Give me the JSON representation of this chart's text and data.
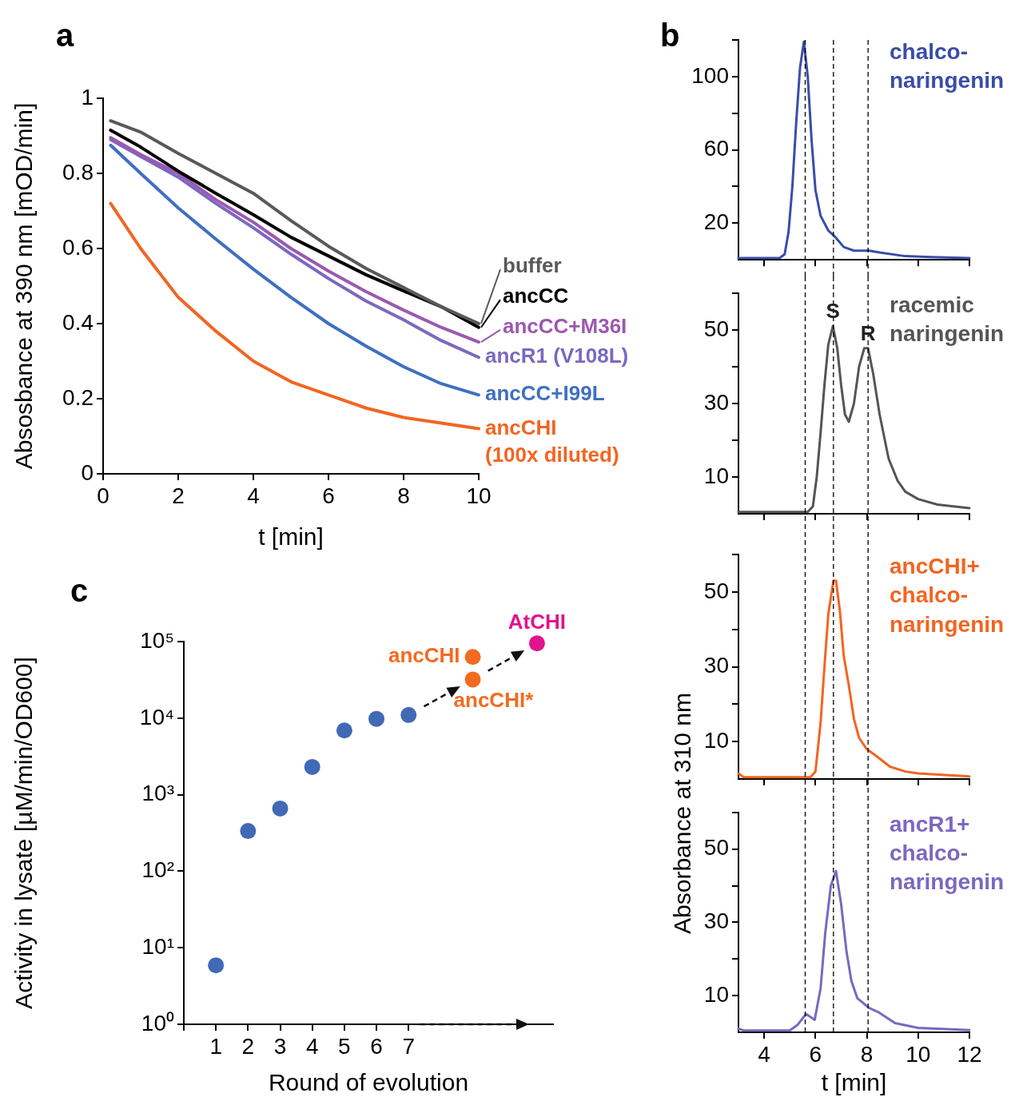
{
  "chart_data": [
    {
      "type": "line",
      "title": "a",
      "xlabel": "t [min]",
      "ylabel": "Absosbance at 390 nm [mOD/min]",
      "xlim": [
        0,
        10
      ],
      "xticks": [
        0,
        2,
        4,
        6,
        8,
        10
      ],
      "ylim": [
        0,
        1
      ],
      "yticks": [
        0,
        0.2,
        0.4,
        0.6,
        0.8,
        1
      ],
      "marker": "none",
      "x": [
        0.2,
        1,
        2,
        3,
        4,
        5,
        6,
        7,
        8,
        9,
        10
      ],
      "series": [
        {
          "name": "buffer",
          "color": "#595959",
          "values": [
            0.94,
            0.91,
            0.853,
            0.8,
            0.747,
            0.674,
            0.606,
            0.547,
            0.496,
            0.445,
            0.4
          ]
        },
        {
          "name": "ancCC",
          "color": "#000000",
          "values": [
            0.915,
            0.87,
            0.806,
            0.747,
            0.69,
            0.63,
            0.58,
            0.53,
            0.487,
            0.445,
            0.39
          ]
        },
        {
          "name": "ancCC+M36I",
          "color": "#9b59b0",
          "values": [
            0.895,
            0.85,
            0.8,
            0.73,
            0.67,
            0.6,
            0.54,
            0.485,
            0.436,
            0.39,
            0.351
          ]
        },
        {
          "name": "ancR1 (V108L)",
          "color": "#7b68c0",
          "values": [
            0.89,
            0.845,
            0.79,
            0.72,
            0.655,
            0.585,
            0.52,
            0.46,
            0.41,
            0.355,
            0.31
          ]
        },
        {
          "name": "ancCC+I99L",
          "color": "#3f6fc0",
          "values": [
            0.875,
            0.8,
            0.708,
            0.625,
            0.545,
            0.47,
            0.4,
            0.34,
            0.285,
            0.24,
            0.21
          ]
        },
        {
          "name": "ancCHI (100x diluted)",
          "color": "#f26522",
          "values": [
            0.72,
            0.6,
            0.47,
            0.38,
            0.3,
            0.245,
            0.21,
            0.175,
            0.15,
            0.135,
            0.12
          ]
        }
      ]
    },
    {
      "type": "line",
      "title": "b",
      "xlim": [
        3,
        12
      ],
      "xticks": [
        4,
        6,
        8,
        10,
        12
      ],
      "ylim": [
        0,
        120
      ],
      "yticks": [
        20,
        {
          "value": 40,
          "label": null
        },
        60,
        {
          "value": 80,
          "label": null
        },
        100,
        {
          "value": 120,
          "label": null
        }
      ],
      "tick_labels": "y",
      "marker": "none",
      "ref_lines": [
        {
          "axis": "x",
          "value": 5.6,
          "line_style": "dashed"
        },
        {
          "axis": "x",
          "value": 6.7,
          "line_style": "dashed"
        },
        {
          "axis": "x",
          "value": 8.05,
          "line_style": "dashed"
        }
      ],
      "series": [
        {
          "name": "chalco-naringenin",
          "color": "#3a4da8",
          "x": [
            3,
            4.6,
            4.8,
            4.95,
            5.1,
            5.25,
            5.4,
            5.55,
            5.7,
            5.85,
            6.0,
            6.2,
            6.5,
            6.8,
            7.1,
            7.5,
            8.1,
            8.5,
            9.5,
            10.5,
            12
          ],
          "values": [
            1,
            1,
            3,
            15,
            40,
            75,
            105,
            119,
            100,
            65,
            38,
            24,
            16,
            12,
            7,
            5,
            5,
            4,
            2,
            1.5,
            1
          ]
        }
      ]
    },
    {
      "type": "line",
      "xlim": [
        3,
        12
      ],
      "xticks": [
        4,
        6,
        8,
        10,
        12
      ],
      "ylim": [
        0,
        60
      ],
      "yticks": [
        10,
        {
          "value": 20,
          "label": null
        },
        30,
        {
          "value": 40,
          "label": null
        },
        50,
        {
          "value": 60,
          "label": null
        }
      ],
      "tick_labels": "y",
      "marker": "none",
      "annotations": [
        {
          "text": "S",
          "x": 6.68,
          "y": 51
        },
        {
          "text": "R",
          "x": 8.05,
          "y": 45
        }
      ],
      "ref_lines": [
        {
          "axis": "x",
          "value": 5.6,
          "line_style": "dashed"
        },
        {
          "axis": "x",
          "value": 6.7,
          "line_style": "dashed"
        },
        {
          "axis": "x",
          "value": 8.05,
          "line_style": "dashed"
        }
      ],
      "series": [
        {
          "name": "racemic naringenin",
          "color": "#555555",
          "x": [
            3,
            5.7,
            5.9,
            6.05,
            6.2,
            6.35,
            6.5,
            6.68,
            6.85,
            7.0,
            7.15,
            7.3,
            7.5,
            7.7,
            7.9,
            8.05,
            8.25,
            8.5,
            8.85,
            9.2,
            9.5,
            10,
            10.75,
            12
          ],
          "values": [
            0.5,
            0.5,
            2,
            10,
            22,
            35,
            46,
            51,
            45,
            35,
            27,
            25,
            30,
            40,
            45,
            45,
            38,
            27,
            15,
            9,
            6,
            4,
            2.5,
            1.5
          ]
        }
      ]
    },
    {
      "type": "line",
      "xlim": [
        3,
        12
      ],
      "xticks": [
        4,
        6,
        8,
        10,
        12
      ],
      "ylim": [
        0,
        60
      ],
      "yticks": [
        10,
        {
          "value": 20,
          "label": null
        },
        30,
        {
          "value": 40,
          "label": null
        },
        50,
        {
          "value": 60,
          "label": null
        }
      ],
      "tick_labels": "y",
      "marker": "none",
      "ref_lines": [
        {
          "axis": "x",
          "value": 5.6,
          "line_style": "dashed"
        },
        {
          "axis": "x",
          "value": 6.7,
          "line_style": "dashed"
        },
        {
          "axis": "x",
          "value": 8.05,
          "line_style": "dashed"
        }
      ],
      "series": [
        {
          "name": "ancCHI+chalco-naringenin",
          "color": "#f26522",
          "x": [
            3,
            3.2,
            5.8,
            6.0,
            6.2,
            6.35,
            6.5,
            6.7,
            6.8,
            6.95,
            7.1,
            7.3,
            7.5,
            7.7,
            8.0,
            8.3,
            8.9,
            9.5,
            10,
            12
          ],
          "values": [
            1.5,
            0.5,
            0.5,
            2,
            15,
            30,
            44,
            53,
            53,
            45,
            33,
            25,
            16,
            11,
            8,
            6.5,
            3.3,
            2,
            1.5,
            0.7
          ]
        }
      ]
    },
    {
      "type": "line",
      "xlabel": "t [min]",
      "ylabel": "Absorbance at 310 nm",
      "xlim": [
        3,
        12
      ],
      "xticks": [
        4,
        6,
        8,
        10,
        12
      ],
      "ylim": [
        0,
        60
      ],
      "yticks": [
        10,
        {
          "value": 20,
          "label": null
        },
        30,
        {
          "value": 40,
          "label": null
        },
        50,
        {
          "value": 60,
          "label": null
        }
      ],
      "marker": "none",
      "ref_lines": [
        {
          "axis": "x",
          "value": 5.6,
          "line_style": "dashed"
        },
        {
          "axis": "x",
          "value": 6.7,
          "line_style": "dashed"
        },
        {
          "axis": "x",
          "value": 8.05,
          "line_style": "dashed"
        }
      ],
      "series": [
        {
          "name": "ancR1+chalco-naringenin",
          "color": "#7b68c0",
          "x": [
            3,
            3.2,
            5.0,
            5.3,
            5.63,
            5.97,
            6.2,
            6.38,
            6.6,
            6.8,
            7.0,
            7.21,
            7.4,
            7.63,
            8.1,
            8.45,
            9.1,
            10,
            12
          ],
          "values": [
            1,
            0.5,
            0.5,
            2,
            5,
            3.4,
            12,
            27,
            40,
            44,
            35,
            22,
            14,
            9.3,
            6.6,
            5.5,
            2.5,
            1.2,
            0.6
          ]
        }
      ]
    },
    {
      "type": "scatter",
      "title": "c",
      "xlabel": "Round of evolution",
      "ylabel": "Activity in lysate [µM/min/OD600]",
      "log": "y",
      "xlim": [
        0,
        11.5
      ],
      "xticks": [
        {
          "value": 0,
          "label": null
        },
        1,
        2,
        3,
        4,
        5,
        6,
        7
      ],
      "ylim": [
        1,
        100000
      ],
      "yticks": [
        {
          "value": 1,
          "label": "10⁰"
        },
        {
          "value": 10,
          "label": "10¹"
        },
        {
          "value": 100,
          "label": "10²"
        },
        {
          "value": 1000,
          "label": "10³"
        },
        {
          "value": 10000,
          "label": "10⁴"
        },
        {
          "value": 100000,
          "label": "10⁵"
        }
      ],
      "marker": "circle",
      "series": [
        {
          "color": "#4169b5",
          "x": [
            1,
            2,
            3,
            4,
            5,
            6,
            7
          ],
          "values": [
            5.9,
            335,
            660,
            2300,
            6900,
            9800,
            11000
          ]
        },
        {
          "name": "ancCHI",
          "color": "#f26b21",
          "x": [
            9
          ],
          "values": [
            63000
          ]
        },
        {
          "name": "ancCHI*",
          "color": "#f26b21",
          "x": [
            9
          ],
          "values": [
            32000
          ]
        },
        {
          "name": "AtCHI",
          "color": "#e0148c",
          "x": [
            11
          ],
          "values": [
            95000
          ]
        }
      ]
    }
  ]
}
